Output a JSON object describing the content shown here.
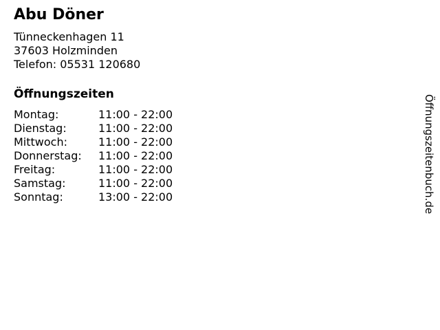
{
  "business": {
    "name": "Abu Döner",
    "address_line1": "Tünneckenhagen 11",
    "address_line2": "37603 Holzminden",
    "phone": "Telefon: 05531 120680"
  },
  "hours": {
    "heading": "Öffnungszeiten",
    "rows": [
      {
        "day": "Montag:",
        "time": "11:00 - 22:00"
      },
      {
        "day": "Dienstag:",
        "time": "11:00 - 22:00"
      },
      {
        "day": "Mittwoch:",
        "time": "11:00 - 22:00"
      },
      {
        "day": "Donnerstag:",
        "time": "11:00 - 22:00"
      },
      {
        "day": "Freitag:",
        "time": "11:00 - 22:00"
      },
      {
        "day": "Samstag:",
        "time": "11:00 - 22:00"
      },
      {
        "day": "Sonntag:",
        "time": "13:00 - 22:00"
      }
    ]
  },
  "watermark": {
    "text": "Öffnungszeitenbuch.de"
  },
  "colors": {
    "text": "#000000",
    "background": "#ffffff"
  }
}
